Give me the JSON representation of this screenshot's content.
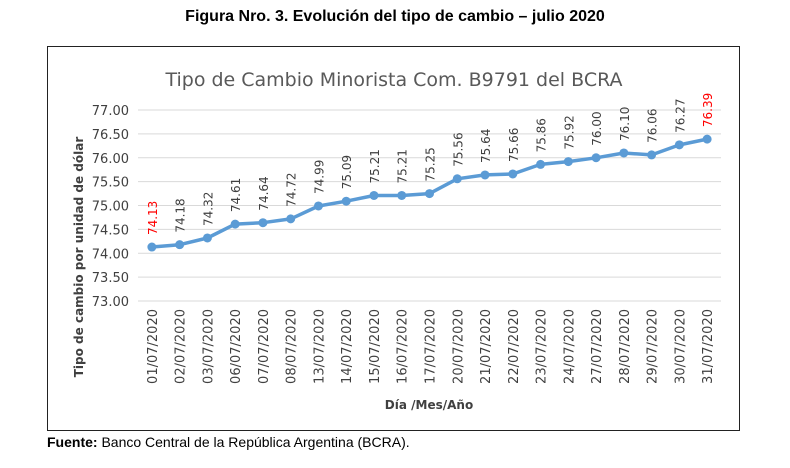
{
  "figure_title": "Figura Nro. 3. Evolución del tipo de cambio – julio 2020",
  "source": {
    "label": "Fuente:",
    "text": " Banco Central de la República Argentina (BCRA)."
  },
  "colors": {
    "line": "#5B9BD5",
    "highlight_label": "#FF0000",
    "label": "#404040",
    "title": "#595959",
    "grid": "#D9D9D9"
  },
  "chart_data": {
    "type": "line",
    "title": "Tipo de Cambio Minorista Com. B9791 del BCRA",
    "xlabel": "Día /Mes/Año",
    "ylabel": "Tipo de cambio por unidad de dólar",
    "ylim": [
      73.0,
      77.0
    ],
    "yticks": [
      "77.00",
      "76.50",
      "76.00",
      "75.50",
      "75.00",
      "74.50",
      "74.00",
      "73.50",
      "73.00"
    ],
    "grid": "horizontal",
    "categories": [
      "01/07/2020",
      "02/07/2020",
      "03/07/2020",
      "06/07/2020",
      "07/07/2020",
      "08/07/2020",
      "13/07/2020",
      "14/07/2020",
      "15/07/2020",
      "16/07/2020",
      "17/07/2020",
      "20/07/2020",
      "21/07/2020",
      "22/07/2020",
      "23/07/2020",
      "24/07/2020",
      "27/07/2020",
      "28/07/2020",
      "29/07/2020",
      "30/07/2020",
      "31/07/2020"
    ],
    "values": [
      74.13,
      74.18,
      74.32,
      74.61,
      74.64,
      74.72,
      74.99,
      75.09,
      75.21,
      75.21,
      75.25,
      75.56,
      75.64,
      75.66,
      75.86,
      75.92,
      76.0,
      76.1,
      76.06,
      76.27,
      76.39
    ],
    "data_labels": [
      "74.13",
      "74.18",
      "74.32",
      "74.61",
      "74.64",
      "74.72",
      "74.99",
      "75.09",
      "75.21",
      "75.21",
      "75.25",
      "75.56",
      "75.64",
      "75.66",
      "75.86",
      "75.92",
      "76.00",
      "76.10",
      "76.06",
      "76.27",
      "76.39"
    ],
    "highlighted_labels": [
      0,
      20
    ]
  }
}
